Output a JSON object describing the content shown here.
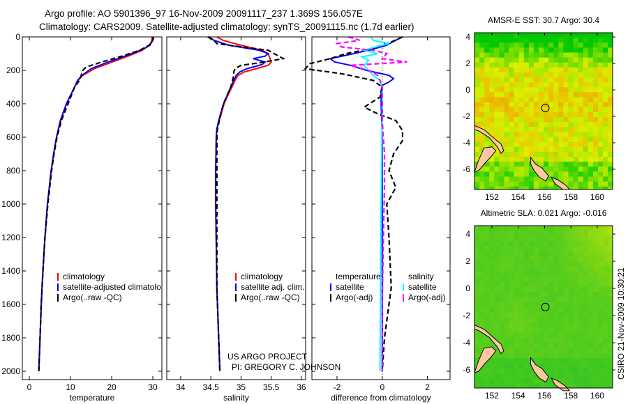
{
  "header": {
    "line1": "Argo profile: AO 5901396_97 16-Nov-2009 20091117_237 1.369S 156.057E",
    "line2": "Climatology: CARS2009. Satellite-adjusted climatology: synTS_20091115.nc (1.7d earlier)"
  },
  "credits": {
    "line1": "US ARGO PROJECT",
    "line2": "PI: GREGORY C. JOHNSON"
  },
  "stamp": "CSIRO 21-Nov-2009 10:30:21",
  "colors": {
    "climatology": "#ff0000",
    "satellite": "#0000ff",
    "argo": "#000000",
    "sal_satellite": "#00ffff",
    "sal_argo": "#ff00ff"
  },
  "chart_data": [
    {
      "type": "line",
      "name": "temperature",
      "xlabel": "temperature",
      "ylabel": "",
      "xlim": [
        -1.7,
        32.2
      ],
      "ylim": [
        2050,
        0
      ],
      "xticks": [
        "0",
        "10",
        "20",
        "30"
      ],
      "yticks": [
        "0",
        "200",
        "400",
        "600",
        "800",
        "1000",
        "1200",
        "1400",
        "1600",
        "1800",
        "2000"
      ],
      "legend": [
        "climatology",
        "satellite-adjusted climatolo",
        "Argo(..raw -QC)"
      ],
      "series": [
        {
          "name": "climatology",
          "color": "#ff0000",
          "dash": false,
          "depth": [
            0,
            20,
            50,
            80,
            110,
            150,
            190,
            230,
            260,
            300,
            400,
            500,
            600,
            700,
            800,
            1000,
            1200,
            1400,
            1600,
            1800,
            2000
          ],
          "values": [
            29.8,
            29.8,
            29.2,
            27.4,
            24.5,
            20.2,
            15.8,
            13.0,
            11.8,
            11.0,
            9.0,
            7.5,
            6.6,
            5.9,
            5.3,
            4.4,
            3.8,
            3.3,
            2.9,
            2.6,
            2.3
          ]
        },
        {
          "name": "satellite-adjusted climatology",
          "color": "#0000ff",
          "dash": false,
          "depth": [
            0,
            20,
            50,
            80,
            110,
            150,
            190,
            230,
            260,
            300,
            400,
            500,
            600,
            700,
            800,
            1000,
            1200,
            1400,
            1600,
            1800,
            2000
          ],
          "values": [
            30.2,
            30.0,
            29.3,
            27.0,
            23.8,
            19.2,
            15.0,
            12.8,
            11.7,
            11.0,
            9.0,
            7.6,
            6.6,
            5.9,
            5.3,
            4.4,
            3.8,
            3.3,
            2.9,
            2.6,
            2.3
          ]
        },
        {
          "name": "Argo(..raw -QC)",
          "color": "#000000",
          "dash": true,
          "depth": [
            0,
            20,
            50,
            80,
            110,
            150,
            180,
            200,
            230,
            260,
            300,
            400,
            500,
            600,
            700,
            800,
            1000,
            1200,
            1400,
            1600,
            1800,
            2000
          ],
          "values": [
            30.1,
            30.0,
            29.1,
            26.8,
            23.2,
            17.6,
            13.8,
            13.0,
            12.6,
            12.2,
            11.0,
            9.4,
            7.8,
            6.7,
            6.0,
            5.4,
            4.5,
            3.8,
            3.3,
            2.9,
            2.6,
            2.3
          ]
        }
      ]
    },
    {
      "type": "line",
      "name": "salinity",
      "xlabel": "salinity",
      "xlim": [
        33.77,
        36.07
      ],
      "ylim": [
        2050,
        0
      ],
      "xticks": [
        "34",
        "34.5",
        "35",
        "35.5",
        "36"
      ],
      "legend": [
        "climatology",
        "satellite adj. clim.",
        "Argo(..raw -QC)"
      ],
      "series": [
        {
          "name": "climatology",
          "color": "#ff0000",
          "dash": false,
          "depth": [
            0,
            20,
            50,
            80,
            100,
            130,
            150,
            170,
            190,
            210,
            230,
            260,
            300,
            350,
            400,
            450,
            500,
            550,
            600,
            800,
            1000,
            1500,
            2000
          ],
          "values": [
            34.6,
            34.7,
            35.0,
            35.35,
            35.45,
            35.48,
            35.5,
            35.45,
            35.25,
            35.05,
            34.95,
            34.9,
            34.85,
            34.78,
            34.72,
            34.68,
            34.64,
            34.6,
            34.59,
            34.58,
            34.58,
            34.6,
            34.65
          ]
        },
        {
          "name": "satellite adj. clim.",
          "color": "#0000ff",
          "dash": false,
          "depth": [
            0,
            20,
            50,
            80,
            100,
            115,
            130,
            150,
            165,
            190,
            210,
            230,
            260,
            300,
            350,
            400,
            450,
            500,
            550,
            600,
            800,
            1000,
            1500,
            2000
          ],
          "values": [
            34.47,
            34.55,
            34.8,
            35.3,
            35.45,
            35.4,
            35.2,
            35.4,
            35.35,
            35.1,
            34.98,
            34.92,
            34.88,
            34.83,
            34.77,
            34.71,
            34.67,
            34.63,
            34.6,
            34.59,
            34.58,
            34.58,
            34.6,
            34.65
          ]
        },
        {
          "name": "Argo(..raw -QC)",
          "color": "#000000",
          "dash": true,
          "depth": [
            0,
            20,
            40,
            80,
            110,
            130,
            155,
            170,
            190,
            210,
            230,
            260,
            300,
            350,
            400,
            450,
            500,
            550,
            600,
            800,
            1000,
            1500,
            2000
          ],
          "values": [
            34.45,
            34.55,
            34.6,
            35.45,
            35.6,
            35.7,
            35.3,
            35.0,
            34.9,
            34.88,
            34.88,
            34.86,
            34.83,
            34.77,
            34.71,
            34.67,
            34.64,
            34.61,
            34.6,
            34.6,
            34.6,
            34.6,
            34.65
          ]
        }
      ]
    },
    {
      "type": "line",
      "name": "difference",
      "xlabel": "difference from climatology",
      "xlim": [
        -3.11,
        3.0
      ],
      "ylim": [
        2050,
        0
      ],
      "xticks": [
        "-2",
        "0",
        "2"
      ],
      "legend": {
        "temperature_header": "temperature",
        "salinity_header": "salinity",
        "temperature": [
          "satellite",
          "Argo(-adj)"
        ],
        "salinity": [
          "satellite",
          "Argo(-adj)"
        ]
      },
      "series": [
        {
          "name": "temperature satellite",
          "color": "#0000ff",
          "dash": false,
          "depth": [
            0,
            20,
            50,
            80,
            110,
            130,
            150,
            170,
            200,
            230,
            250,
            270,
            290,
            320,
            400,
            600,
            1000,
            1500,
            2000
          ],
          "values": [
            0.9,
            0.6,
            0.2,
            -0.6,
            -1.6,
            -2.3,
            -2.1,
            -1.4,
            -0.7,
            0.3,
            0.5,
            0.3,
            0.0,
            -0.05,
            -0.05,
            0.0,
            0.0,
            0.0,
            0.0
          ]
        },
        {
          "name": "temperature Argo(-adj)",
          "color": "#000000",
          "dash": true,
          "depth": [
            0,
            30,
            70,
            100,
            130,
            160,
            190,
            220,
            260,
            300,
            360,
            420,
            460,
            500,
            560,
            620,
            700,
            800,
            900,
            1000,
            1200,
            1500,
            1800,
            2000
          ],
          "values": [
            0.9,
            0.4,
            -0.5,
            -1.6,
            -2.3,
            -3.2,
            -3.4,
            -1.8,
            -0.4,
            0.0,
            -0.1,
            -0.8,
            -0.2,
            0.6,
            0.9,
            0.9,
            0.5,
            0.3,
            0.6,
            0.2,
            0.3,
            0.4,
            0.1,
            0.0
          ]
        },
        {
          "name": "salinity satellite",
          "color": "#00ffff",
          "dash": false,
          "depth": [
            0,
            20,
            40,
            60,
            80,
            100,
            120,
            140,
            170,
            200,
            230,
            260,
            300,
            400,
            1000,
            2000
          ],
          "values": [
            -0.5,
            -0.4,
            0.3,
            -0.3,
            -0.8,
            -0.2,
            -0.9,
            -0.6,
            -0.8,
            -0.6,
            -0.4,
            -0.1,
            0.0,
            0.0,
            -0.05,
            -0.1
          ]
        },
        {
          "name": "salinity Argo(-adj)",
          "color": "#ff00ff",
          "dash": true,
          "depth": [
            0,
            20,
            40,
            60,
            80,
            100,
            130,
            150,
            170,
            200,
            230,
            260,
            300,
            500,
            700,
            900,
            1200,
            1600,
            2000
          ],
          "values": [
            -1.5,
            -1.0,
            -2.0,
            -1.8,
            -0.4,
            0.2,
            0.0,
            1.1,
            -1.4,
            -0.6,
            -0.2,
            -0.1,
            0.0,
            0.0,
            0.1,
            0.1,
            0.05,
            0.0,
            0.0
          ]
        }
      ]
    },
    {
      "type": "heatmap",
      "name": "sst-map",
      "title": "AMSR-E SST: 30.7 Argo: 30.4",
      "xlim": [
        150.68,
        161.17
      ],
      "ylim": [
        -7.53,
        4.32
      ],
      "xticks": [
        "152",
        "154",
        "156",
        "158",
        "160"
      ],
      "yticks": [
        "4",
        "2",
        "0",
        "-2",
        "-4",
        "-6"
      ],
      "argo_position": {
        "lon": 156.057,
        "lat": -1.369
      }
    },
    {
      "type": "heatmap",
      "name": "sla-map",
      "title": "Altimetric SLA: 0.021 Argo: -0.016",
      "xlim": [
        150.68,
        161.17
      ],
      "ylim": [
        -7.33,
        4.62
      ],
      "xticks": [
        "152",
        "154",
        "156",
        "158",
        "160"
      ],
      "yticks": [
        "4",
        "2",
        "0",
        "-2",
        "-4",
        "-6"
      ],
      "argo_position": {
        "lon": 156.057,
        "lat": -1.369
      }
    }
  ]
}
